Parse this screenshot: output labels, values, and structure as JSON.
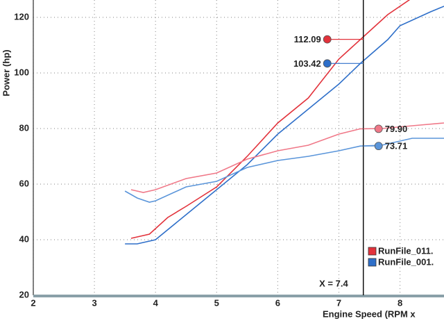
{
  "chart_data": {
    "type": "line",
    "y_label": "Power (hp)",
    "x_label": "Engine Speed (RPM x",
    "xlim": [
      2,
      8.72
    ],
    "ylim": [
      20,
      126.25
    ],
    "xticks": [
      2,
      3,
      4,
      5,
      6,
      7,
      8
    ],
    "yticks": [
      20,
      40,
      60,
      80,
      100,
      120
    ],
    "grid": true,
    "series": [
      {
        "color": "#e2323b",
        "x": [
          3.6,
          3.9,
          4.2,
          4.5,
          5,
          5.5,
          6,
          6.5,
          7,
          7.35,
          7.8,
          8.2
        ],
        "values": [
          40.5,
          42,
          48,
          52,
          59,
          70,
          82,
          91,
          105,
          112,
          121,
          127
        ]
      },
      {
        "color": "#2e6fc9",
        "x": [
          3.5,
          3.7,
          4.0,
          4.5,
          5,
          5.5,
          6,
          6.5,
          7,
          7.35,
          7.8,
          8.0,
          8.5,
          8.72
        ],
        "values": [
          38.5,
          38.5,
          40,
          49,
          58,
          67,
          78,
          87,
          96,
          103.4,
          112,
          117,
          122,
          124
        ]
      },
      {
        "color": "#f07888",
        "x": [
          3.6,
          3.8,
          4.0,
          4.5,
          5,
          5.5,
          6,
          6.5,
          7,
          7.35,
          7.7,
          8.2,
          8.72
        ],
        "values": [
          58,
          57,
          58,
          62,
          64,
          69,
          72,
          74,
          78,
          79.9,
          80,
          81,
          82
        ]
      },
      {
        "color": "#5a95da",
        "x": [
          3.5,
          3.7,
          3.9,
          4.0,
          4.5,
          5,
          5.5,
          6,
          6.5,
          7,
          7.35,
          7.7,
          8.2,
          8.72
        ],
        "values": [
          57.5,
          55,
          53.5,
          54,
          59,
          61,
          66,
          68.5,
          70,
          72,
          73.7,
          74,
          76.5,
          76.5
        ]
      }
    ],
    "cursor": {
      "value": 7.4,
      "label": "X = 7.4"
    },
    "readouts": [
      {
        "value": 112.09,
        "label": "112.09",
        "color": "#e2323b"
      },
      {
        "value": 103.42,
        "label": "103.42",
        "color": "#2e6fc9"
      },
      {
        "value": 79.9,
        "label": "79.90",
        "color": "#f07888"
      },
      {
        "value": 73.71,
        "label": "73.71",
        "color": "#5a95da"
      }
    ],
    "legend": [
      {
        "label": "RunFile_011.",
        "color": "#e2323b"
      },
      {
        "label": "RunFile_001.",
        "color": "#2e6fc9"
      }
    ]
  }
}
